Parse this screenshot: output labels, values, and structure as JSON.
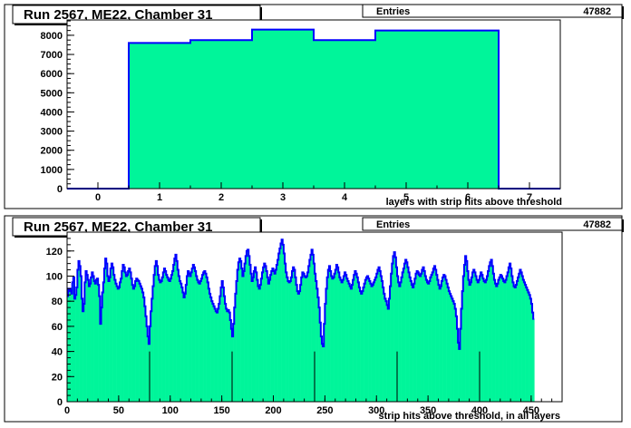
{
  "colors": {
    "fill": "#00f59a",
    "line": "#0000ff",
    "pad_bg": "#ffffff",
    "frame": "#000000"
  },
  "chart_data": [
    {
      "type": "histogram",
      "title": "Run 2567, ME22, Chamber 31",
      "stats": {
        "label": "Entries",
        "value": "47882"
      },
      "xlabel": "layers with strip hits above threshold",
      "ylabel": "",
      "xlim": [
        -0.5,
        7.5
      ],
      "ylim": [
        0,
        8800
      ],
      "xticks": [
        0,
        1,
        2,
        3,
        4,
        5,
        6,
        7
      ],
      "yticks": [
        0,
        1000,
        2000,
        3000,
        4000,
        5000,
        6000,
        7000,
        8000
      ],
      "bin_edges": [
        -0.5,
        0.5,
        1.5,
        2.5,
        3.5,
        4.5,
        5.5,
        6.5,
        7.5
      ],
      "values": [
        0,
        7600,
        7750,
        8300,
        7750,
        8250,
        8250,
        0
      ],
      "grid": false
    },
    {
      "type": "histogram",
      "title": "Run 2567, ME22, Chamber 31",
      "stats": {
        "label": "Entries",
        "value": "47882"
      },
      "xlabel": "strip hits above threshold, in all layers",
      "ylabel": "",
      "xlim": [
        0,
        480
      ],
      "ylim": [
        0,
        135
      ],
      "xticks": [
        0,
        50,
        100,
        150,
        200,
        250,
        300,
        350,
        400,
        450
      ],
      "yticks": [
        0,
        20,
        40,
        60,
        80,
        100,
        120
      ],
      "bin_width": 1,
      "values": [
        84,
        90,
        88,
        90,
        86,
        95,
        99,
        82,
        85,
        91,
        105,
        112,
        108,
        100,
        82,
        72,
        78,
        95,
        104,
        101,
        97,
        92,
        94,
        99,
        103,
        100,
        96,
        94,
        97,
        98,
        93,
        84,
        62,
        75,
        87,
        95,
        106,
        114,
        110,
        100,
        96,
        99,
        106,
        110,
        107,
        101,
        97,
        94,
        92,
        90,
        91,
        95,
        98,
        104,
        109,
        107,
        103,
        100,
        101,
        104,
        106,
        103,
        98,
        93,
        90,
        92,
        96,
        98,
        97,
        96,
        94,
        92,
        90,
        87,
        83,
        76,
        68,
        60,
        52,
        46,
        60,
        72,
        82,
        92,
        101,
        108,
        112,
        108,
        101,
        97,
        95,
        96,
        99,
        103,
        106,
        104,
        101,
        99,
        97,
        96,
        98,
        101,
        104,
        109,
        114,
        117,
        112,
        105,
        100,
        96,
        94,
        91,
        87,
        83,
        86,
        93,
        100,
        104,
        102,
        100,
        103,
        106,
        109,
        107,
        104,
        100,
        97,
        95,
        94,
        96,
        98,
        101,
        103,
        104,
        102,
        99,
        95,
        90,
        86,
        83,
        80,
        78,
        76,
        74,
        72,
        71,
        74,
        78,
        84,
        91,
        96,
        91,
        84,
        78,
        74,
        72,
        73,
        71,
        65,
        58,
        52,
        62,
        75,
        86,
        96,
        105,
        111,
        114,
        112,
        106,
        100,
        104,
        110,
        116,
        120,
        121,
        116,
        109,
        102,
        96,
        99,
        104,
        107,
        103,
        97,
        92,
        90,
        93,
        98,
        103,
        107,
        110,
        108,
        104,
        99,
        94,
        97,
        101,
        104,
        106,
        104,
        102,
        105,
        109,
        113,
        118,
        122,
        126,
        129,
        125,
        118,
        110,
        103,
        99,
        96,
        95,
        96,
        99,
        104,
        107,
        105,
        99,
        93,
        88,
        86,
        88,
        93,
        99,
        103,
        102,
        100,
        99,
        100,
        103,
        108,
        113,
        117,
        121,
        117,
        110,
        102,
        96,
        90,
        83,
        75,
        63,
        52,
        46,
        44,
        62,
        78,
        90,
        99,
        105,
        108,
        104,
        100,
        98,
        99,
        102,
        105,
        109,
        107,
        103,
        99,
        97,
        95,
        97,
        100,
        103,
        101,
        98,
        96,
        94,
        92,
        90,
        93,
        97,
        101,
        104,
        102,
        99,
        95,
        91,
        88,
        86,
        88,
        91,
        94,
        97,
        99,
        100,
        98,
        96,
        94,
        92,
        93,
        95,
        97,
        99,
        102,
        105,
        107,
        104,
        100,
        96,
        91,
        86,
        82,
        80,
        77,
        74,
        82,
        92,
        102,
        110,
        116,
        119,
        115,
        107,
        100,
        95,
        92,
        95,
        99,
        103,
        106,
        110,
        113,
        111,
        107,
        103,
        99,
        96,
        93,
        91,
        94,
        98,
        102,
        104,
        103,
        101,
        100,
        102,
        105,
        107,
        104,
        100,
        97,
        95,
        94,
        96,
        99,
        101,
        103,
        106,
        108,
        105,
        101,
        97,
        93,
        90,
        92,
        96,
        99,
        101,
        100,
        97,
        94,
        91,
        88,
        86,
        84,
        82,
        80,
        78,
        74,
        68,
        58,
        47,
        42,
        58,
        74,
        88,
        100,
        109,
        116,
        112,
        104,
        97,
        93,
        95,
        99,
        103,
        105,
        103,
        100,
        97,
        95,
        97,
        100,
        103,
        101,
        98,
        96,
        95,
        97,
        100,
        104,
        108,
        111,
        113,
        108,
        102,
        97,
        94,
        92,
        94,
        97,
        99,
        101,
        100,
        98,
        96,
        95,
        97,
        100,
        103,
        107,
        110,
        106,
        100,
        95,
        92,
        91,
        93,
        96,
        99,
        102,
        105,
        103,
        100,
        97,
        95,
        93,
        91,
        89,
        87,
        85,
        82,
        78,
        71,
        66
      ],
      "annotations": {
        "vertical_markers": [
          80,
          160,
          240,
          320,
          400
        ],
        "marker_height": 40
      },
      "grid": false
    }
  ]
}
